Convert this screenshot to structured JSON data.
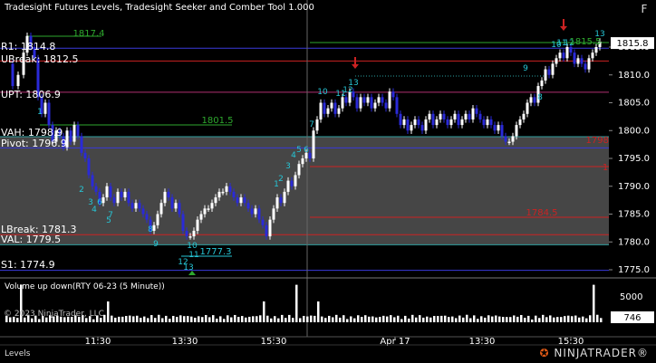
{
  "window": {
    "title": "Tradesight Futures Levels, Tradesight Seeker and Comber Tool 1.000",
    "float_button": "F"
  },
  "levels": [
    {
      "id": "r1",
      "label": "R1: 1814.8",
      "price": 1814.8,
      "color": "#3a3adc"
    },
    {
      "id": "ubreak",
      "label": "UBreak: 1812.5",
      "price": 1812.5,
      "color": "#cc2222"
    },
    {
      "id": "upt",
      "label": "UPT: 1806.9",
      "price": 1806.9,
      "color": "#b03070"
    },
    {
      "id": "vah",
      "label": "VAH: 1798.9",
      "price": 1798.9,
      "color": "#30a0a0"
    },
    {
      "id": "pivot",
      "label": "Pivot: 1796.9",
      "price": 1796.9,
      "color": "#3a3adc"
    },
    {
      "id": "lbreak",
      "label": "LBreak: 1781.3",
      "price": 1781.3,
      "color": "#cc2222"
    },
    {
      "id": "val",
      "label": "VAL: 1779.5",
      "price": 1779.5,
      "color": "#30a0a0"
    },
    {
      "id": "s1",
      "label": "S1: 1774.9",
      "price": 1774.9,
      "color": "#3a3adc"
    }
  ],
  "annotations": [
    {
      "text": "1817.4",
      "color": "#2ea82e"
    },
    {
      "text": "1801.5",
      "color": "#2ea82e"
    },
    {
      "text": "1777.3",
      "color": "#26c6d6"
    },
    {
      "text": "1798.8",
      "color": "#cc2222"
    },
    {
      "text": "1784.5",
      "color": "#cc2222"
    },
    {
      "text": "1815.5",
      "color": "#2ea82e"
    },
    {
      "text": "1",
      "color": "#cc2222"
    }
  ],
  "price_axis": {
    "ticks": [
      "1815.0",
      "1810.0",
      "1805.0",
      "1800.0",
      "1795.0",
      "1790.0",
      "1785.0",
      "1780.0",
      "1775.0"
    ],
    "current_price": "1815.8"
  },
  "time_axis": {
    "ticks": [
      "11:30",
      "13:30",
      "15:30",
      "Apr 17",
      "13:30",
      "15:30"
    ]
  },
  "volume_panel": {
    "title": "Volume up down(RTY 06-23 (5 Minute))",
    "axis_ticks": [
      "5000",
      "0"
    ],
    "current_value": "746",
    "copyright": "© 2023 NinjaTrader, LLC"
  },
  "tabs": [
    "Levels"
  ],
  "brand": {
    "logo_text": "NINJATRADER",
    "reg": "®"
  },
  "colors": {
    "up_candle": "#ffffff",
    "down_candle": "#2a2ad8",
    "value_area_fill": "#808080",
    "seeker_count": "#26c6d6",
    "comber_count": "#2ea82e",
    "arrow": "#cc2222"
  },
  "seeker_counts": [
    "1",
    "2",
    "3",
    "4",
    "5",
    "6",
    "7",
    "8",
    "9",
    "10",
    "11",
    "12",
    "13",
    "10",
    "11",
    "12",
    "13",
    "1",
    "2",
    "3",
    "4",
    "5",
    "6",
    "7",
    "8",
    "9",
    "10",
    "11",
    "12",
    "13"
  ]
}
